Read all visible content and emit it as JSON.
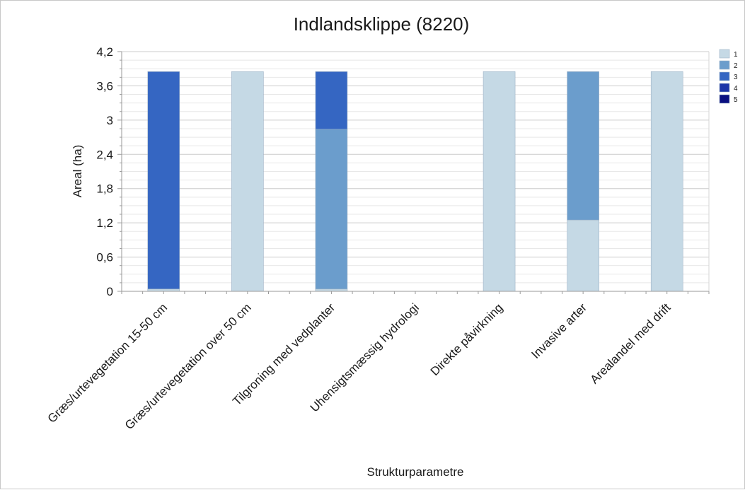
{
  "chart_data": {
    "type": "bar",
    "stacked": true,
    "title": "Indlandsklippe (8220)",
    "xlabel": "Strukturparametre",
    "ylabel": "Areal (ha)",
    "ylim": [
      0,
      4.2
    ],
    "yticks": [
      "0",
      "0,6",
      "1,2",
      "1,8",
      "2,4",
      "3",
      "3,6",
      "4,2"
    ],
    "grid": true,
    "legend_position": "top-right",
    "categories": [
      "Græs/urtevegetation 15-50 cm",
      "Græs/urtevegetation over 50 cm",
      "Tilgroning med vedplanter",
      "Uhensigtsmæssig hydrologi",
      "Direkte påvirkning",
      "Invasive arter",
      "Arealandel med drift"
    ],
    "series": [
      {
        "name": "1",
        "color": "#c5d9e5",
        "values": [
          0.04,
          3.85,
          0.04,
          0,
          3.85,
          1.25,
          3.85
        ]
      },
      {
        "name": "2",
        "color": "#6b9dcc",
        "values": [
          0,
          0,
          2.8,
          0,
          0,
          2.6,
          0
        ]
      },
      {
        "name": "3",
        "color": "#3566c2",
        "values": [
          3.81,
          0,
          1.01,
          0,
          0,
          0,
          0
        ]
      },
      {
        "name": "4",
        "color": "#1c34a8",
        "values": [
          0,
          0,
          0,
          0,
          0,
          0,
          0
        ]
      },
      {
        "name": "5",
        "color": "#0a0f80",
        "values": [
          0,
          0,
          0,
          0,
          0,
          0,
          0
        ]
      }
    ]
  }
}
